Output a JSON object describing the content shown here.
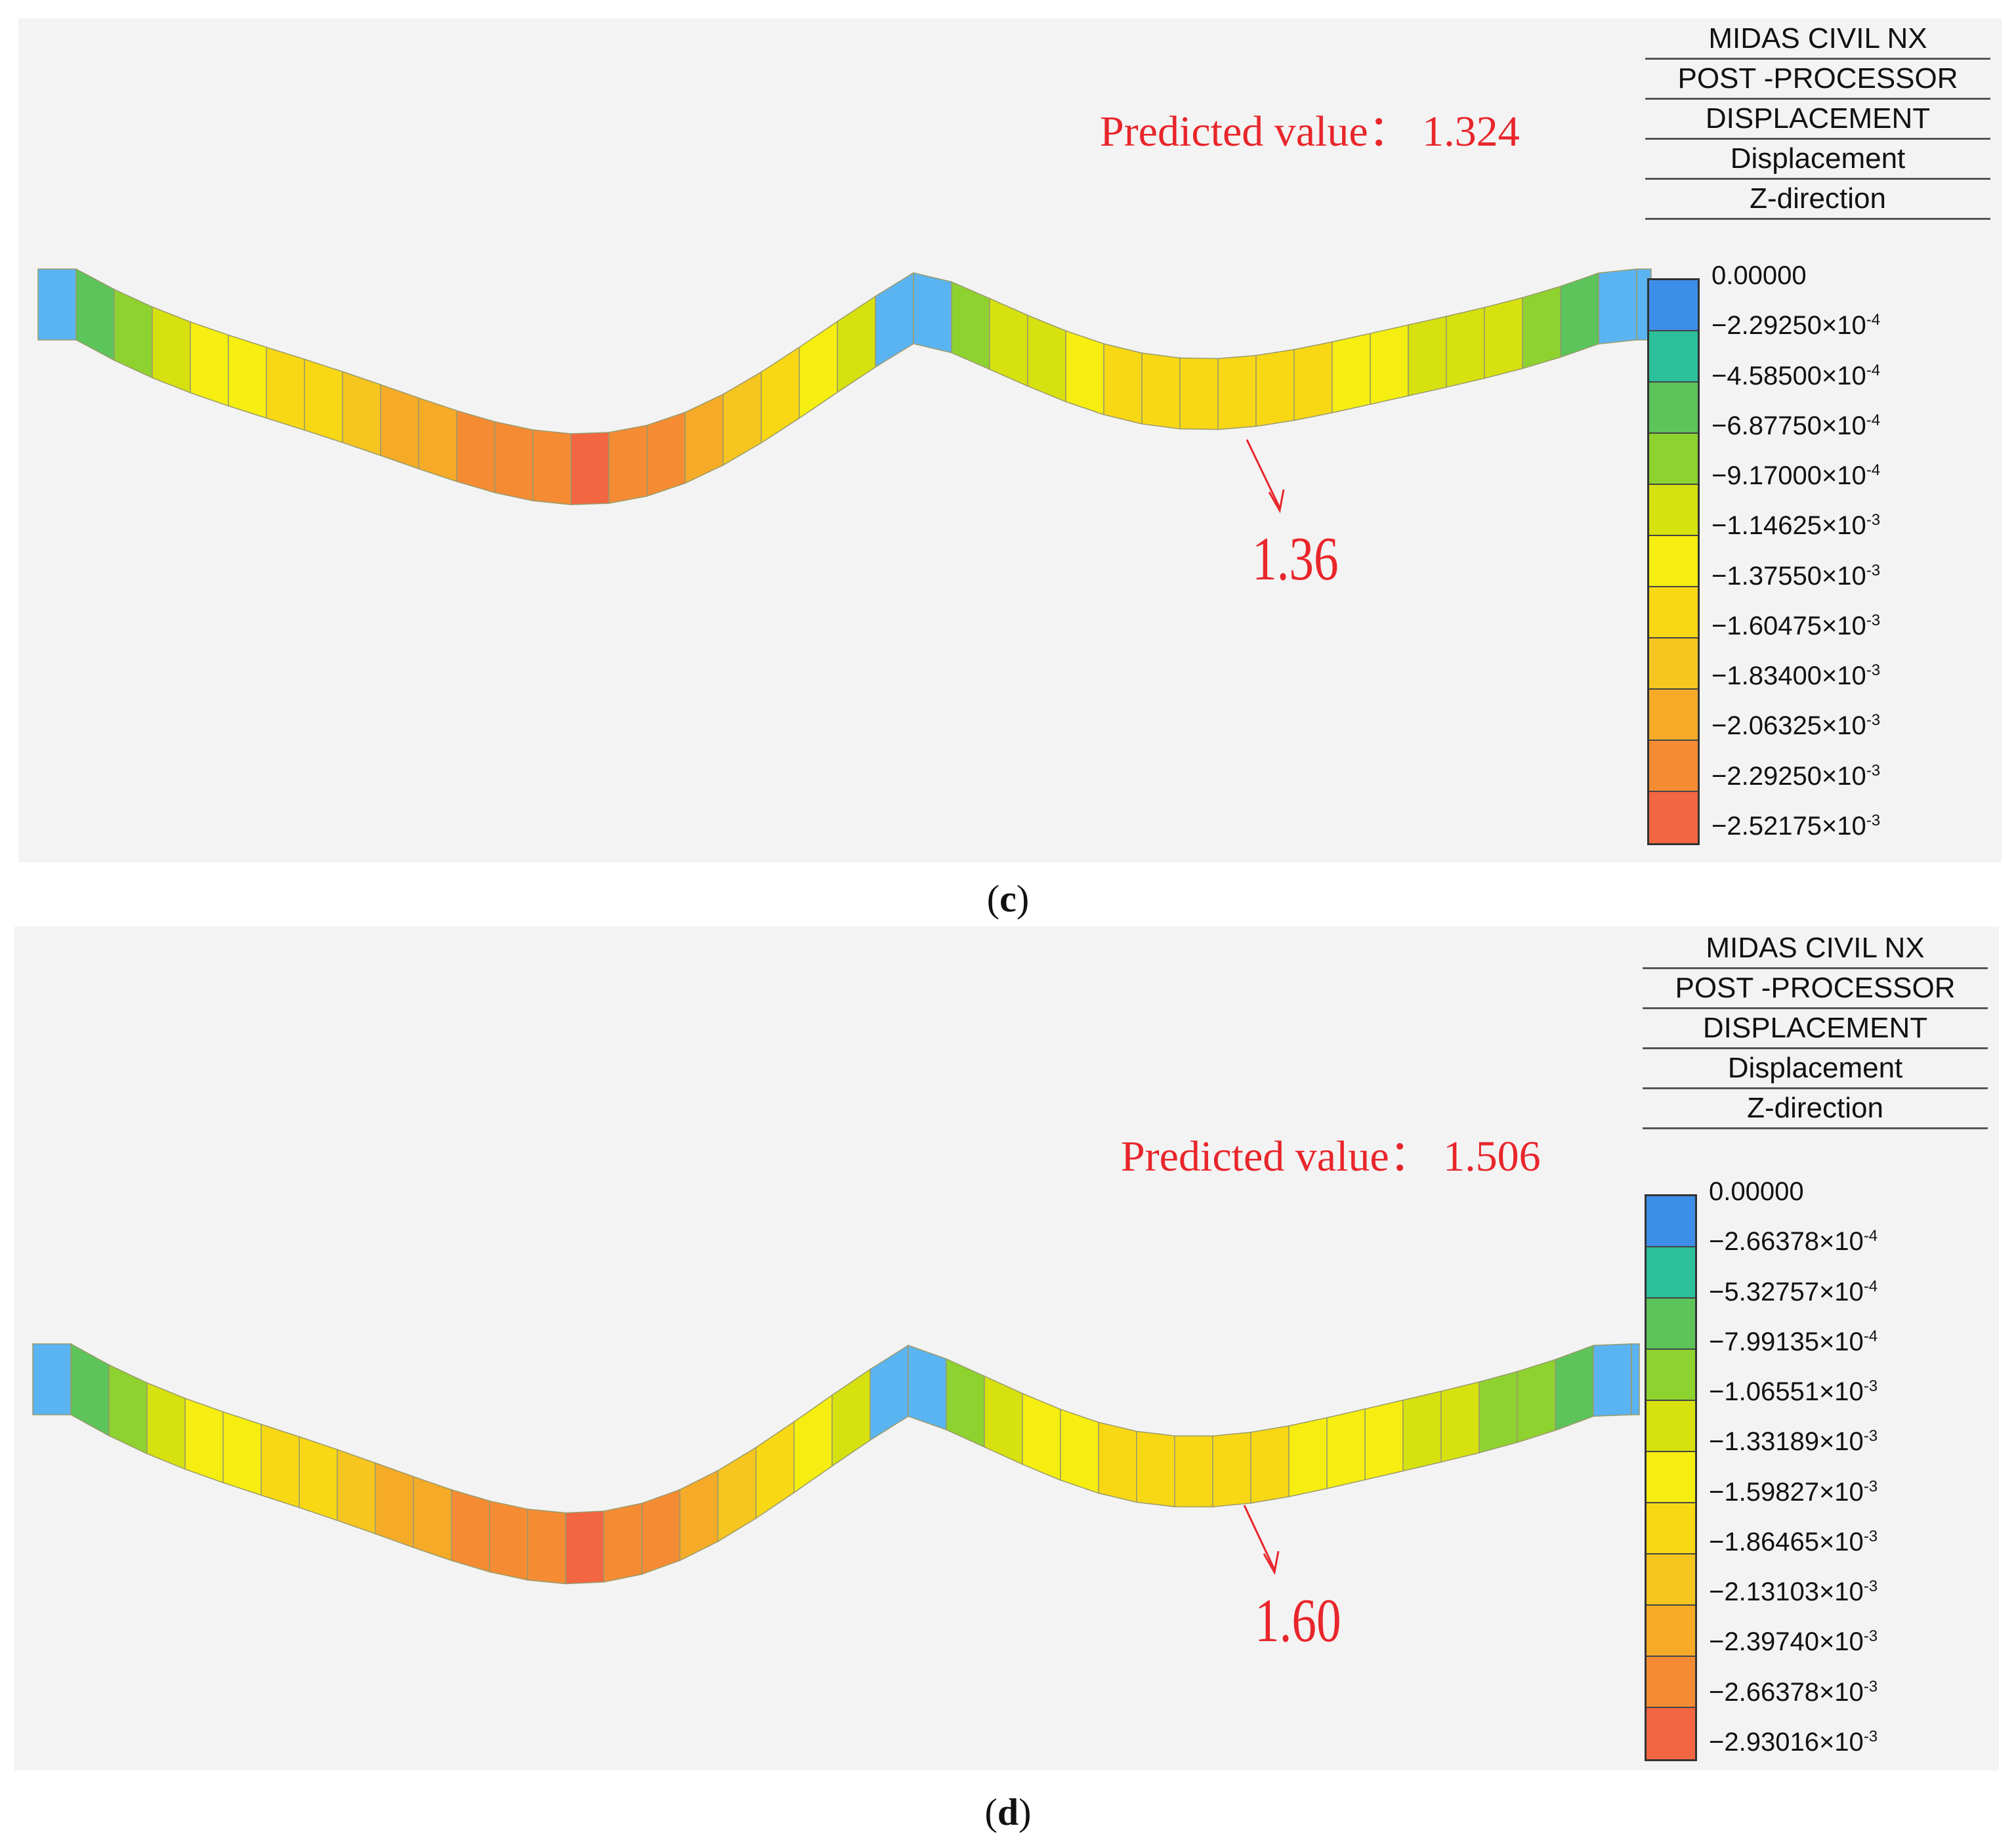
{
  "panels": {
    "c": {
      "header": [
        "MIDAS CIVIL NX",
        "POST -PROCESSOR",
        "DISPLACEMENT",
        "Displacement",
        "Z-direction"
      ],
      "predicted": "Predicted value： 1.324",
      "callout": "1.36",
      "scale_labels": [
        "0.00000",
        "−2.29250×10",
        "−4.58500×10",
        "−6.87750×10",
        "−9.17000×10",
        "−1.14625×10",
        "−1.37550×10",
        "−1.60475×10",
        "−1.83400×10",
        "−2.06325×10",
        "−2.29250×10",
        "−2.52175×10"
      ],
      "scale_exps": [
        "",
        "-4",
        "-4",
        "-4",
        "-4",
        "-3",
        "-3",
        "-3",
        "-3",
        "-3",
        "-3",
        "-3"
      ],
      "caption_open": "(",
      "caption_letter": "c",
      "caption_close": ")"
    },
    "d": {
      "header": [
        "MIDAS CIVIL NX",
        "POST -PROCESSOR",
        "DISPLACEMENT",
        "Displacement",
        "Z-direction"
      ],
      "predicted": "Predicted value： 1.506",
      "callout": "1.60",
      "scale_labels": [
        "0.00000",
        "−2.66378×10",
        "−5.32757×10",
        "−7.99135×10",
        "−1.06551×10",
        "−1.33189×10",
        "−1.59827×10",
        "−1.86465×10",
        "−2.13103×10",
        "−2.39740×10",
        "−2.66378×10",
        "−2.93016×10"
      ],
      "scale_exps": [
        "",
        "-4",
        "-4",
        "-4",
        "-3",
        "-3",
        "-3",
        "-3",
        "-3",
        "-3",
        "-3",
        "-3"
      ],
      "caption_open": "(",
      "caption_letter": "d",
      "caption_close": ")"
    }
  },
  "colors": {
    "scale": [
      "#3d8ee8",
      "#2bbf9a",
      "#5cc45a",
      "#8ed230",
      "#d7e10f",
      "#f5ee10",
      "#f8d814",
      "#f6c51f",
      "#f5ab27",
      "#f58c34",
      "#f26641"
    ],
    "annotation": "#e8262b"
  }
}
